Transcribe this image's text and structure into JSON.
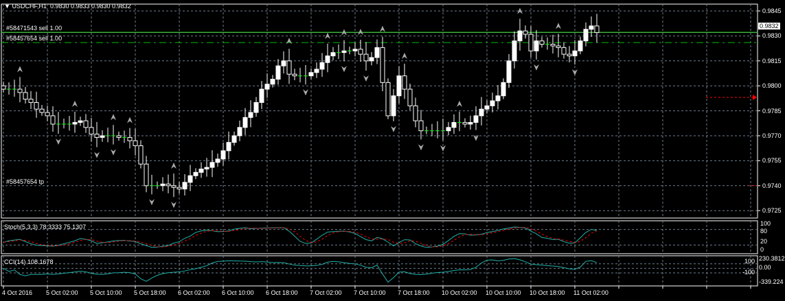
{
  "header": {
    "symbol": "USDCHF,H1",
    "ohlc": "0.9830 0.9833 0.9830 0.9832"
  },
  "orders": [
    {
      "label": "#58471543 sell 1.00",
      "price": 0.9832,
      "style": "solid"
    },
    {
      "label": "#58457654 sell 1.00",
      "price": 0.9826,
      "style": "dashed"
    },
    {
      "label": "#58457654 tp",
      "price": 0.974,
      "style": "tp"
    }
  ],
  "current_price": "0.9832",
  "colors": {
    "grid": "#6f7f8f",
    "bull": "#ffffff",
    "bear": "#000000",
    "doji": "#00ff00",
    "order": "#00c000",
    "tp": "#ff0000",
    "stoch_main": "#20b2aa",
    "stoch_signal": "#ff0000",
    "cci": "#20b2aa"
  },
  "indicators": {
    "stoch": {
      "label": "Stoch(5,3,3) 78.3333 75.1307",
      "levels": [
        "100",
        "80",
        "20",
        "0"
      ]
    },
    "cci": {
      "label": "CCI(14) 108.1678",
      "levels": [
        "230.3812",
        "100",
        "0.00",
        "-100",
        "-339.224"
      ]
    }
  },
  "chart_data": {
    "type": "candlestick",
    "symbol": "USDCHF",
    "timeframe": "H1",
    "y_ticks": [
      "0.9845",
      "0.9830",
      "0.9815",
      "0.9800",
      "0.9785",
      "0.9770",
      "0.9755",
      "0.9740",
      "0.9725"
    ],
    "ylim": [
      0.97205,
      0.9849
    ],
    "x_ticks": [
      "4 Oct 2016",
      "5 Oct 02:00",
      "5 Oct 10:00",
      "5 Oct 18:00",
      "6 Oct 02:00",
      "6 Oct 10:00",
      "6 Oct 18:00",
      "7 Oct 02:00",
      "7 Oct 10:00",
      "7 Oct 18:00",
      "10 Oct 02:00",
      "10 Oct 10:00",
      "10 Oct 18:00",
      "11 Oct 02:00"
    ],
    "closes": [
      0.9798,
      0.9798,
      0.9798,
      0.9796,
      0.9792,
      0.979,
      0.9786,
      0.9784,
      0.9782,
      0.9777,
      0.9777,
      0.9777,
      0.9777,
      0.9778,
      0.9779,
      0.9775,
      0.9771,
      0.9769,
      0.977,
      0.977,
      0.977,
      0.9769,
      0.9769,
      0.9767,
      0.9764,
      0.9753,
      0.974,
      0.974,
      0.974,
      0.9741,
      0.974,
      0.9739,
      0.9738,
      0.9742,
      0.9746,
      0.9748,
      0.975,
      0.9751,
      0.9754,
      0.9756,
      0.9761,
      0.9766,
      0.977,
      0.9775,
      0.9781,
      0.9784,
      0.979,
      0.9798,
      0.9801,
      0.9804,
      0.9812,
      0.9815,
      0.9807,
      0.9806,
      0.9806,
      0.9806,
      0.9808,
      0.981,
      0.9814,
      0.9818,
      0.982,
      0.982,
      0.9821,
      0.9821,
      0.9822,
      0.9819,
      0.9815,
      0.9817,
      0.9823,
      0.9802,
      0.9782,
      0.9794,
      0.9806,
      0.9798,
      0.9788,
      0.9779,
      0.9773,
      0.9773,
      0.9773,
      0.9773,
      0.9773,
      0.9775,
      0.9778,
      0.9778,
      0.9777,
      0.9778,
      0.9782,
      0.9786,
      0.9788,
      0.9791,
      0.9794,
      0.9802,
      0.9815,
      0.9827,
      0.9833,
      0.9831,
      0.9821,
      0.9827,
      0.9825,
      0.9825,
      0.9824,
      0.9823,
      0.9819,
      0.9818,
      0.9821,
      0.9827,
      0.9834,
      0.9836,
      0.9832
    ],
    "grid": true
  }
}
